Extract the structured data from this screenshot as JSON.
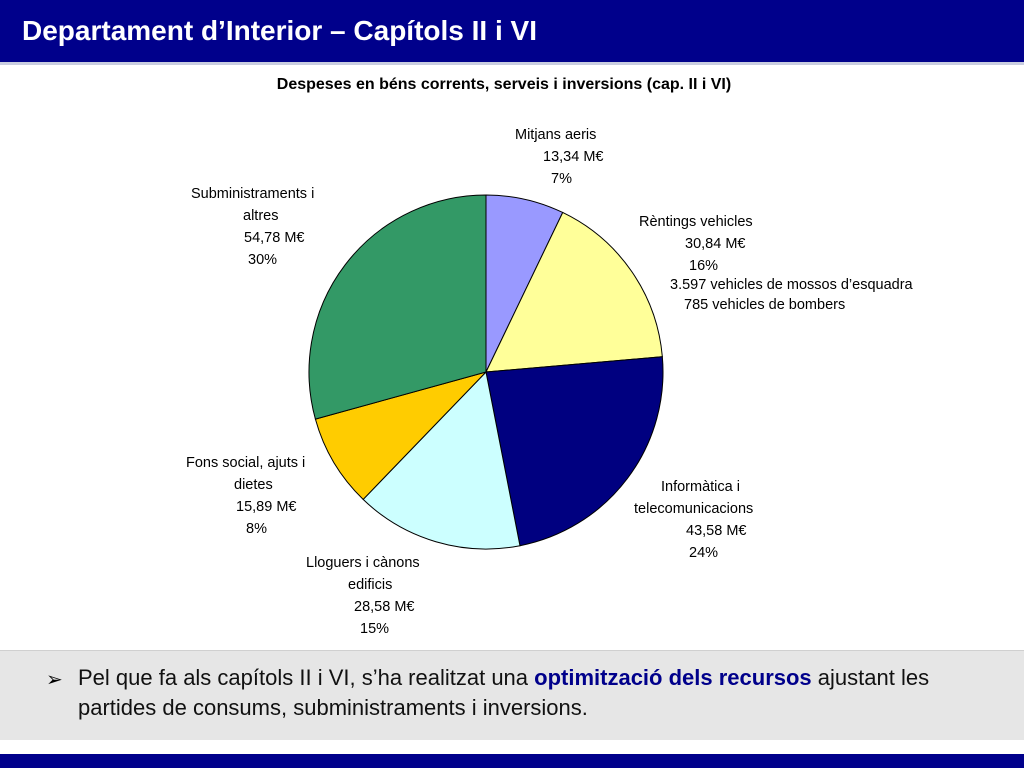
{
  "slide": {
    "title": "Departament d’Interior – Capítols II i VI"
  },
  "chart_data": {
    "type": "pie",
    "title": "Despeses en béns corrents, serveis i inversions (cap. II i VI)",
    "unit": "M€",
    "slices": [
      {
        "key": "mitjans",
        "label": "Mitjans aeris",
        "value": 13.34,
        "value_text": "13,34",
        "unit_text": "M€",
        "percent": "7%",
        "color": "#9999ff"
      },
      {
        "key": "rentings",
        "label": "Rèntings vehicles",
        "value": 30.84,
        "value_text": "30,84",
        "unit_text": "M€",
        "percent": "16%",
        "color": "#ffff99",
        "notes": [
          "3.597 vehicles de mossos d’esquadra",
          "785 vehicles de bombers"
        ]
      },
      {
        "key": "informatica",
        "label_lines": [
          "Informàtica i",
          "telecomunicacions"
        ],
        "value": 43.58,
        "value_text": "43,58",
        "unit_text": "M€",
        "percent": "24%",
        "color": "#000080"
      },
      {
        "key": "lloguers",
        "label_lines": [
          "Lloguers  i cànons",
          "edificis"
        ],
        "value": 28.58,
        "value_text": "28,58",
        "unit_text": "M€",
        "percent": "15%",
        "color": "#ccffff"
      },
      {
        "key": "fons",
        "label_lines": [
          "Fons social, ajuts i",
          "dietes"
        ],
        "value": 15.89,
        "value_text": "15,89",
        "unit_text": "M€",
        "percent": "8%",
        "color": "#ffcc00"
      },
      {
        "key": "subministraments",
        "label_lines": [
          "Subministraments i",
          "altres"
        ],
        "value": 54.78,
        "value_text": "54,78",
        "unit_text": "M€",
        "percent": "30%",
        "color": "#339966"
      }
    ]
  },
  "note": {
    "bullet": "➢",
    "text_before": "Pel que fa als capítols II i VI, s’ha realitzat una ",
    "highlight": "optimització dels recursos",
    "text_after": " ajustant les partides de consums, subministraments i inversions."
  }
}
